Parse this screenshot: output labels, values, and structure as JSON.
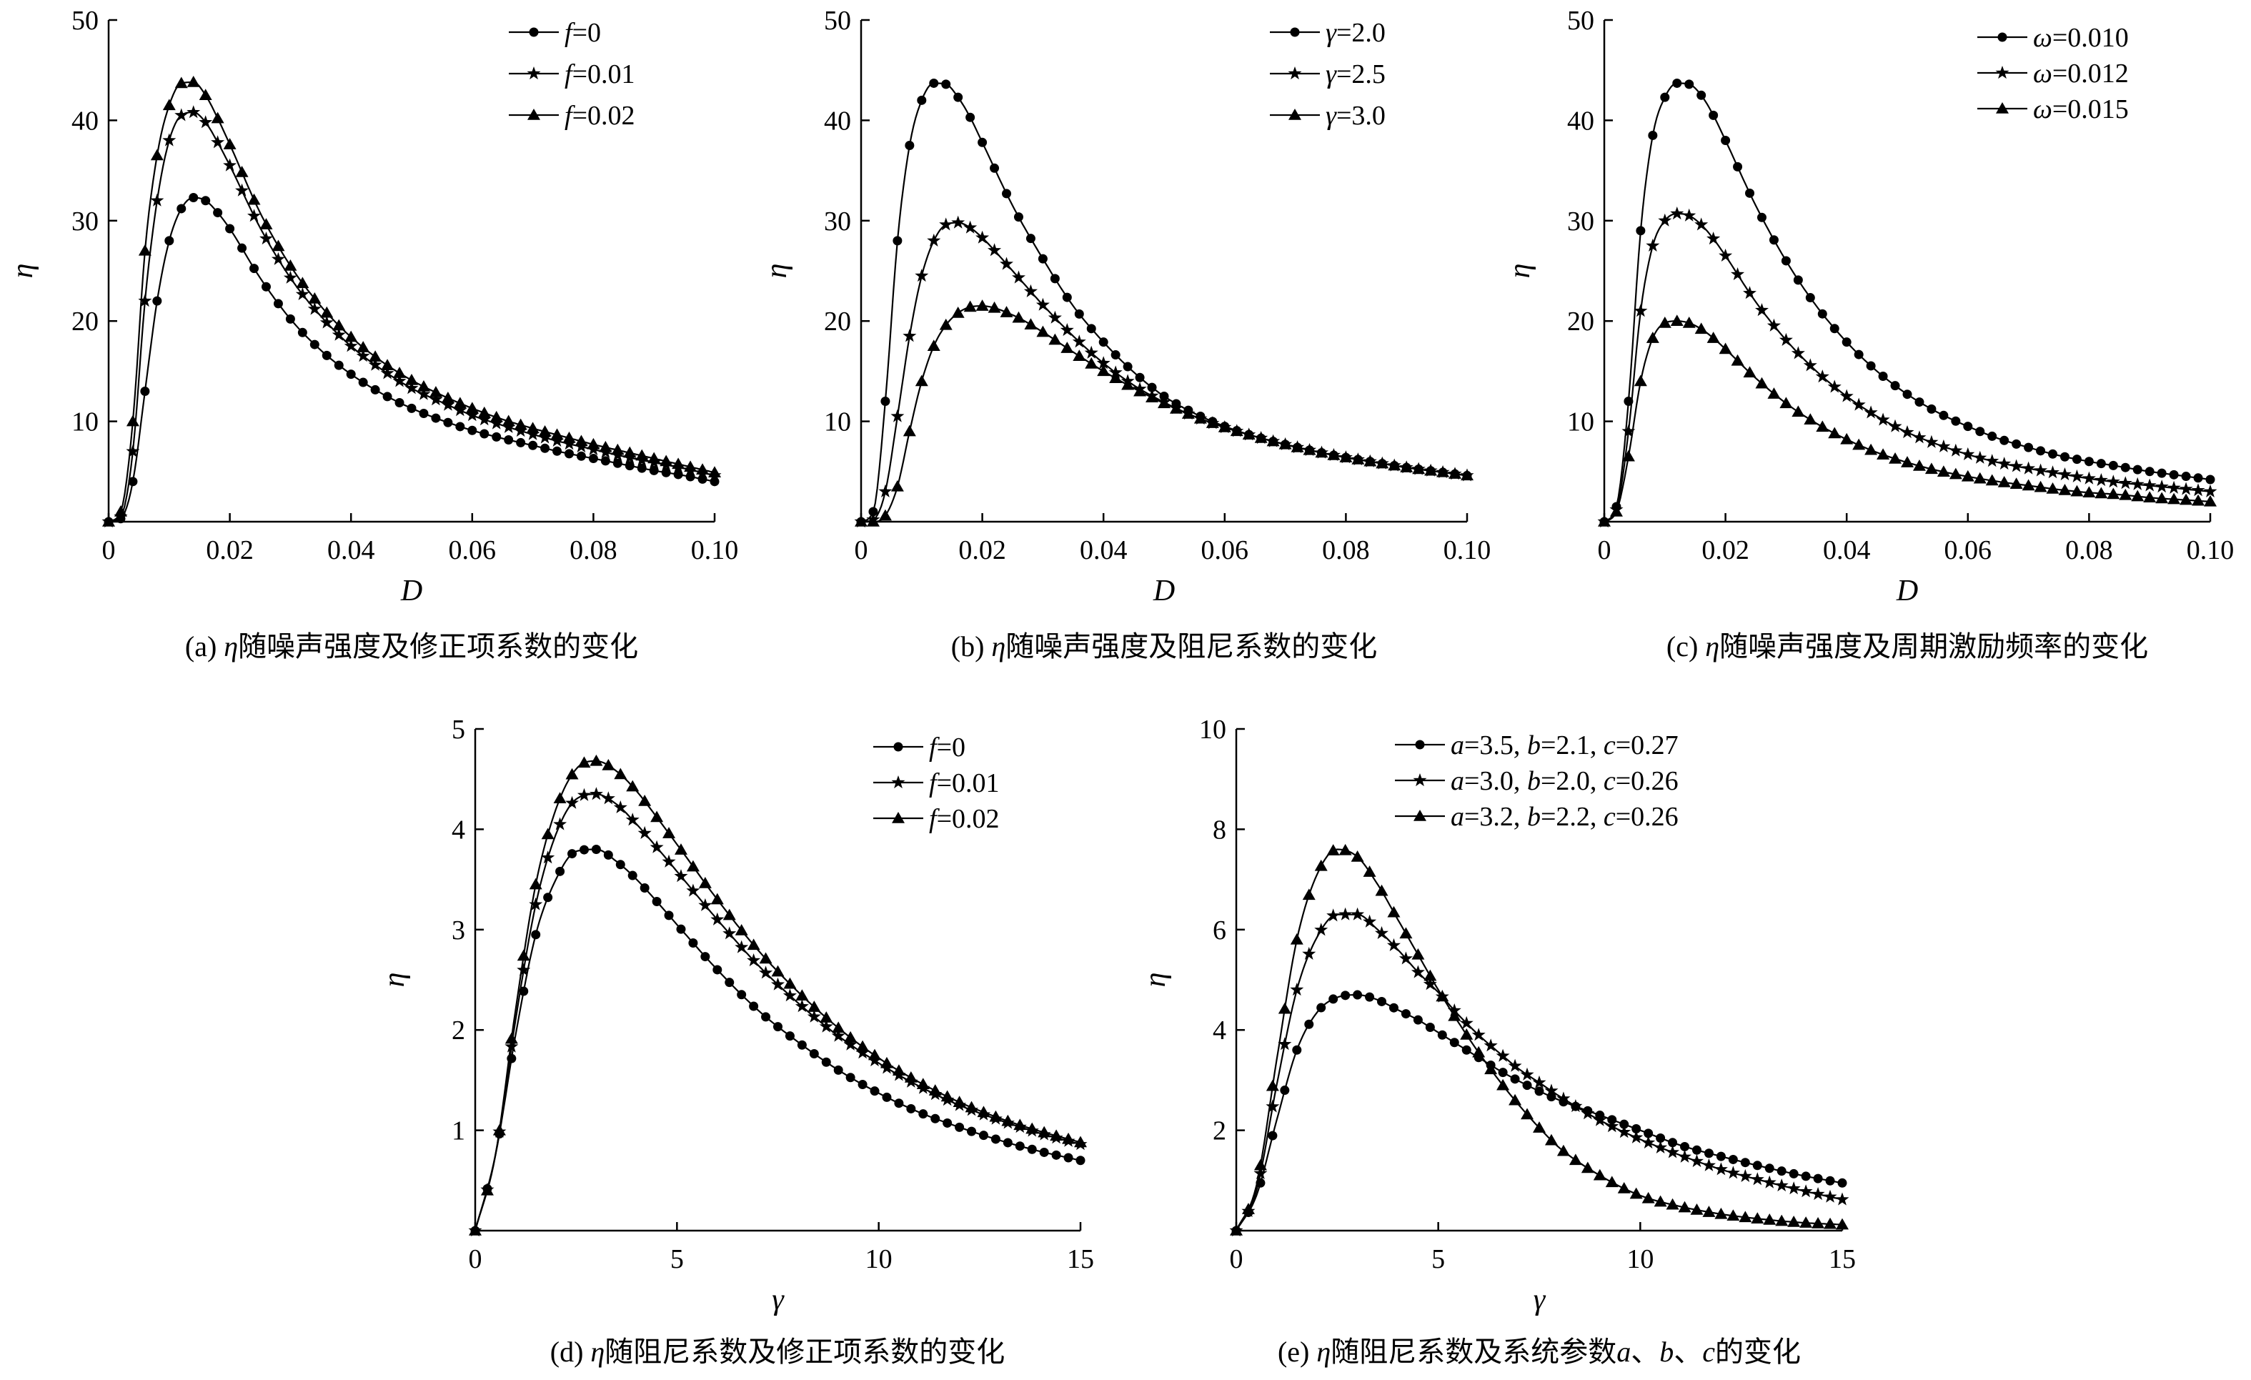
{
  "chart_data": [
    {
      "id": "a",
      "type": "line",
      "caption": "(a) η随噪声强度及修正项系数的变化",
      "xlabel": "D",
      "ylabel": "η",
      "xlim": [
        0,
        0.1
      ],
      "ylim": [
        0,
        50
      ],
      "xticks": [
        0,
        0.02,
        0.04,
        0.06,
        0.08,
        0.1
      ],
      "xtick_labels": [
        "0",
        "0.02",
        "0.04",
        "0.06",
        "0.08",
        "0.10"
      ],
      "yticks": [
        10,
        20,
        30,
        40,
        50
      ],
      "ytick_labels": [
        "10",
        "20",
        "30",
        "40",
        "50"
      ],
      "legend_position": "top-right",
      "x": [
        0,
        0.002,
        0.004,
        0.006,
        0.008,
        0.01,
        0.012,
        0.014,
        0.016,
        0.018,
        0.02,
        0.025,
        0.03,
        0.035,
        0.04,
        0.045,
        0.05,
        0.055,
        0.06,
        0.065,
        0.07,
        0.075,
        0.08,
        0.085,
        0.09,
        0.095,
        0.1
      ],
      "series": [
        {
          "name": "f=0",
          "legend_var": "f",
          "legend_rest": "=0",
          "marker": "circle",
          "values": [
            0,
            0.3,
            4,
            13,
            22,
            28,
            31.2,
            32.3,
            32,
            30.8,
            29.2,
            24.3,
            20.2,
            17.1,
            14.7,
            12.8,
            11.3,
            10.1,
            9.1,
            8.3,
            7.6,
            6.9,
            6.3,
            5.7,
            5.1,
            4.6,
            4.0
          ]
        },
        {
          "name": "f=0.01",
          "legend_var": "f",
          "legend_rest": "=0.01",
          "marker": "star",
          "values": [
            0,
            0.5,
            7,
            22,
            32,
            38,
            40.5,
            40.8,
            39.8,
            37.8,
            35.5,
            29.3,
            24.3,
            20.5,
            17.5,
            15.2,
            13.3,
            11.9,
            10.6,
            9.6,
            8.7,
            7.9,
            7.2,
            6.5,
            5.9,
            5.3,
            4.6
          ]
        },
        {
          "name": "f=0.02",
          "legend_var": "f",
          "legend_rest": "=0.02",
          "marker": "triangle",
          "values": [
            0,
            1,
            10,
            27,
            36.5,
            41.5,
            43.7,
            43.8,
            42.5,
            40.2,
            37.6,
            30.8,
            25.5,
            21.5,
            18.4,
            16,
            14.1,
            12.6,
            11.3,
            10.2,
            9.3,
            8.5,
            7.7,
            7.0,
            6.3,
            5.6,
            4.9
          ]
        }
      ]
    },
    {
      "id": "b",
      "type": "line",
      "caption": "(b) η随噪声强度及阻尼系数的变化",
      "xlabel": "D",
      "ylabel": "η",
      "xlim": [
        0,
        0.1
      ],
      "ylim": [
        0,
        50
      ],
      "xticks": [
        0,
        0.02,
        0.04,
        0.06,
        0.08,
        0.1
      ],
      "xtick_labels": [
        "0",
        "0.02",
        "0.04",
        "0.06",
        "0.08",
        "0.10"
      ],
      "yticks": [
        10,
        20,
        30,
        40,
        50
      ],
      "ytick_labels": [
        "10",
        "20",
        "30",
        "40",
        "50"
      ],
      "legend_position": "top-right",
      "x": [
        0,
        0.002,
        0.004,
        0.006,
        0.008,
        0.01,
        0.012,
        0.014,
        0.016,
        0.018,
        0.02,
        0.025,
        0.03,
        0.035,
        0.04,
        0.045,
        0.05,
        0.055,
        0.06,
        0.065,
        0.07,
        0.075,
        0.08,
        0.085,
        0.09,
        0.095,
        0.1
      ],
      "series": [
        {
          "name": "γ=2.0",
          "legend_var": "γ",
          "legend_rest": "=2.0",
          "marker": "circle",
          "values": [
            0,
            1,
            12,
            28,
            37.5,
            42,
            43.7,
            43.6,
            42.3,
            40.3,
            37.8,
            31.5,
            26.2,
            21.5,
            17.9,
            14.9,
            12.5,
            10.8,
            9.5,
            8.5,
            7.7,
            7.0,
            6.4,
            5.9,
            5.4,
            5.0,
            4.6
          ]
        },
        {
          "name": "γ=2.5",
          "legend_var": "γ",
          "legend_rest": "=2.5",
          "marker": "star",
          "values": [
            0,
            0.2,
            3,
            10.5,
            18.5,
            24.5,
            28,
            29.6,
            29.8,
            29.3,
            28.3,
            25,
            21.6,
            18.5,
            15.8,
            13.6,
            11.9,
            10.5,
            9.4,
            8.5,
            7.7,
            7.0,
            6.4,
            5.9,
            5.4,
            5.0,
            4.6
          ]
        },
        {
          "name": "γ=3.0",
          "legend_var": "γ",
          "legend_rest": "=3.0",
          "marker": "triangle",
          "values": [
            0,
            0,
            0.6,
            3.5,
            9,
            14,
            17.5,
            19.6,
            20.8,
            21.4,
            21.5,
            20.6,
            18.9,
            16.9,
            15,
            13.3,
            11.8,
            10.5,
            9.4,
            8.5,
            7.7,
            7.0,
            6.4,
            5.9,
            5.4,
            5.0,
            4.6
          ]
        }
      ]
    },
    {
      "id": "c",
      "type": "line",
      "caption": "(c) η随噪声强度及周期激励频率的变化",
      "xlabel": "D",
      "ylabel": "η",
      "xlim": [
        0,
        0.1
      ],
      "ylim": [
        0,
        50
      ],
      "xticks": [
        0,
        0.02,
        0.04,
        0.06,
        0.08,
        0.1
      ],
      "xtick_labels": [
        "0",
        "0.02",
        "0.04",
        "0.06",
        "0.08",
        "0.10"
      ],
      "yticks": [
        10,
        20,
        30,
        40,
        50
      ],
      "ytick_labels": [
        "10",
        "20",
        "30",
        "40",
        "50"
      ],
      "legend_position": "top-right",
      "x": [
        0,
        0.002,
        0.004,
        0.006,
        0.008,
        0.01,
        0.012,
        0.014,
        0.016,
        0.018,
        0.02,
        0.025,
        0.03,
        0.035,
        0.04,
        0.045,
        0.05,
        0.055,
        0.06,
        0.065,
        0.07,
        0.075,
        0.08,
        0.085,
        0.09,
        0.095,
        0.1
      ],
      "series": [
        {
          "name": "ω=0.010",
          "legend_var": "ω",
          "legend_rest": "=0.010",
          "marker": "circle",
          "values": [
            0,
            1.5,
            12,
            29,
            38.5,
            42.3,
            43.7,
            43.6,
            42.5,
            40.5,
            38,
            31.5,
            26,
            21.5,
            17.9,
            15,
            12.7,
            10.9,
            9.5,
            8.3,
            7.4,
            6.6,
            6.0,
            5.5,
            5.0,
            4.6,
            4.2
          ]
        },
        {
          "name": "ω=0.012",
          "legend_var": "ω",
          "legend_rest": "=0.012",
          "marker": "star",
          "values": [
            0,
            1.2,
            9,
            21,
            27.5,
            30,
            30.7,
            30.5,
            29.6,
            28.2,
            26.5,
            21.9,
            18.1,
            15,
            12.5,
            10.5,
            8.9,
            7.7,
            6.7,
            5.9,
            5.3,
            4.8,
            4.3,
            3.9,
            3.6,
            3.3,
            3.0
          ]
        },
        {
          "name": "ω=0.015",
          "legend_var": "ω",
          "legend_rest": "=0.015",
          "marker": "triangle",
          "values": [
            0,
            1,
            6.5,
            14,
            18.3,
            19.8,
            20,
            19.8,
            19.2,
            18.3,
            17.2,
            14.3,
            11.8,
            9.8,
            8.2,
            6.9,
            5.9,
            5.1,
            4.5,
            4.0,
            3.6,
            3.2,
            2.9,
            2.7,
            2.4,
            2.2,
            2.0
          ]
        }
      ]
    },
    {
      "id": "d",
      "type": "line",
      "caption": "(d) η随阻尼系数及修正项系数的变化",
      "xlabel": "γ",
      "ylabel": "η",
      "xlim": [
        0,
        15
      ],
      "ylim": [
        0,
        5
      ],
      "xticks": [
        0,
        5,
        10,
        15
      ],
      "xtick_labels": [
        "0",
        "5",
        "10",
        "15"
      ],
      "yticks": [
        1,
        2,
        3,
        4,
        5
      ],
      "ytick_labels": [
        "1",
        "2",
        "3",
        "4",
        "5"
      ],
      "legend_position": "top-right",
      "x": [
        0,
        0.5,
        1,
        1.5,
        2,
        2.5,
        3,
        3.5,
        4,
        4.5,
        5,
        6,
        7,
        8,
        9,
        10,
        11,
        12,
        13,
        14,
        15
      ],
      "series": [
        {
          "name": "f=0",
          "legend_var": "f",
          "legend_rest": "=0",
          "marker": "circle",
          "values": [
            0,
            0.75,
            1.95,
            2.95,
            3.5,
            3.78,
            3.8,
            3.68,
            3.5,
            3.28,
            3.05,
            2.6,
            2.2,
            1.88,
            1.6,
            1.37,
            1.18,
            1.03,
            0.9,
            0.79,
            0.7
          ]
        },
        {
          "name": "f=0.01",
          "legend_var": "f",
          "legend_rest": "=0.01",
          "marker": "star",
          "values": [
            0,
            0.75,
            2.1,
            3.25,
            3.95,
            4.3,
            4.35,
            4.25,
            4.05,
            3.82,
            3.58,
            3.1,
            2.65,
            2.27,
            1.94,
            1.67,
            1.44,
            1.25,
            1.1,
            0.97,
            0.86
          ]
        },
        {
          "name": "f=0.02",
          "legend_var": "f",
          "legend_rest": "=0.02",
          "marker": "triangle",
          "values": [
            0,
            0.75,
            2.2,
            3.45,
            4.2,
            4.6,
            4.68,
            4.58,
            4.38,
            4.12,
            3.85,
            3.3,
            2.8,
            2.38,
            2.02,
            1.72,
            1.48,
            1.28,
            1.12,
            0.99,
            0.88
          ]
        }
      ]
    },
    {
      "id": "e",
      "type": "line",
      "caption": "(e) η随阻尼系数及系统参数a、b、c的变化",
      "xlabel": "γ",
      "ylabel": "η",
      "xlim": [
        0,
        15
      ],
      "ylim": [
        0,
        10
      ],
      "xticks": [
        0,
        5,
        10,
        15
      ],
      "xtick_labels": [
        "0",
        "5",
        "10",
        "15"
      ],
      "yticks": [
        2,
        4,
        6,
        8,
        10
      ],
      "ytick_labels": [
        "2",
        "4",
        "6",
        "8",
        "10"
      ],
      "legend_position": "top-left",
      "x": [
        0,
        0.5,
        1,
        1.5,
        2,
        2.5,
        3,
        3.5,
        4,
        4.5,
        5,
        5.5,
        6,
        6.5,
        7,
        7.5,
        8,
        9,
        10,
        11,
        12,
        13,
        14,
        15
      ],
      "series": [
        {
          "name": "a=3.5, b=2.1, c=0.27",
          "legend_rich": [
            [
              "a",
              "=3.5, "
            ],
            [
              "b",
              "=2.1, "
            ],
            [
              "c",
              "=0.27"
            ]
          ],
          "marker": "circle",
          "values": [
            0,
            0.7,
            2.2,
            3.6,
            4.35,
            4.65,
            4.7,
            4.6,
            4.4,
            4.2,
            3.95,
            3.7,
            3.45,
            3.2,
            2.98,
            2.78,
            2.6,
            2.3,
            2.0,
            1.7,
            1.48,
            1.28,
            1.1,
            0.95
          ]
        },
        {
          "name": "a=3.0, b=2.0, c=0.26",
          "legend_rich": [
            [
              "a",
              "=3.0, "
            ],
            [
              "b",
              "=2.0, "
            ],
            [
              "c",
              "=0.26"
            ]
          ],
          "marker": "star",
          "values": [
            0,
            0.8,
            2.9,
            4.8,
            5.85,
            6.3,
            6.3,
            6.0,
            5.6,
            5.15,
            4.75,
            4.3,
            3.9,
            3.55,
            3.22,
            2.95,
            2.68,
            2.2,
            1.82,
            1.5,
            1.22,
            1.0,
            0.8,
            0.62
          ]
        },
        {
          "name": "a=3.2, b=2.2, c=0.26",
          "legend_rich": [
            [
              "a",
              "=3.2, "
            ],
            [
              "b",
              "=2.2, "
            ],
            [
              "c",
              "=0.26"
            ]
          ],
          "marker": "triangle",
          "values": [
            0,
            0.9,
            3.4,
            5.8,
            7.1,
            7.6,
            7.45,
            6.9,
            6.2,
            5.5,
            4.8,
            4.15,
            3.55,
            3.0,
            2.5,
            2.05,
            1.65,
            1.1,
            0.7,
            0.48,
            0.33,
            0.23,
            0.16,
            0.12
          ]
        }
      ]
    }
  ]
}
